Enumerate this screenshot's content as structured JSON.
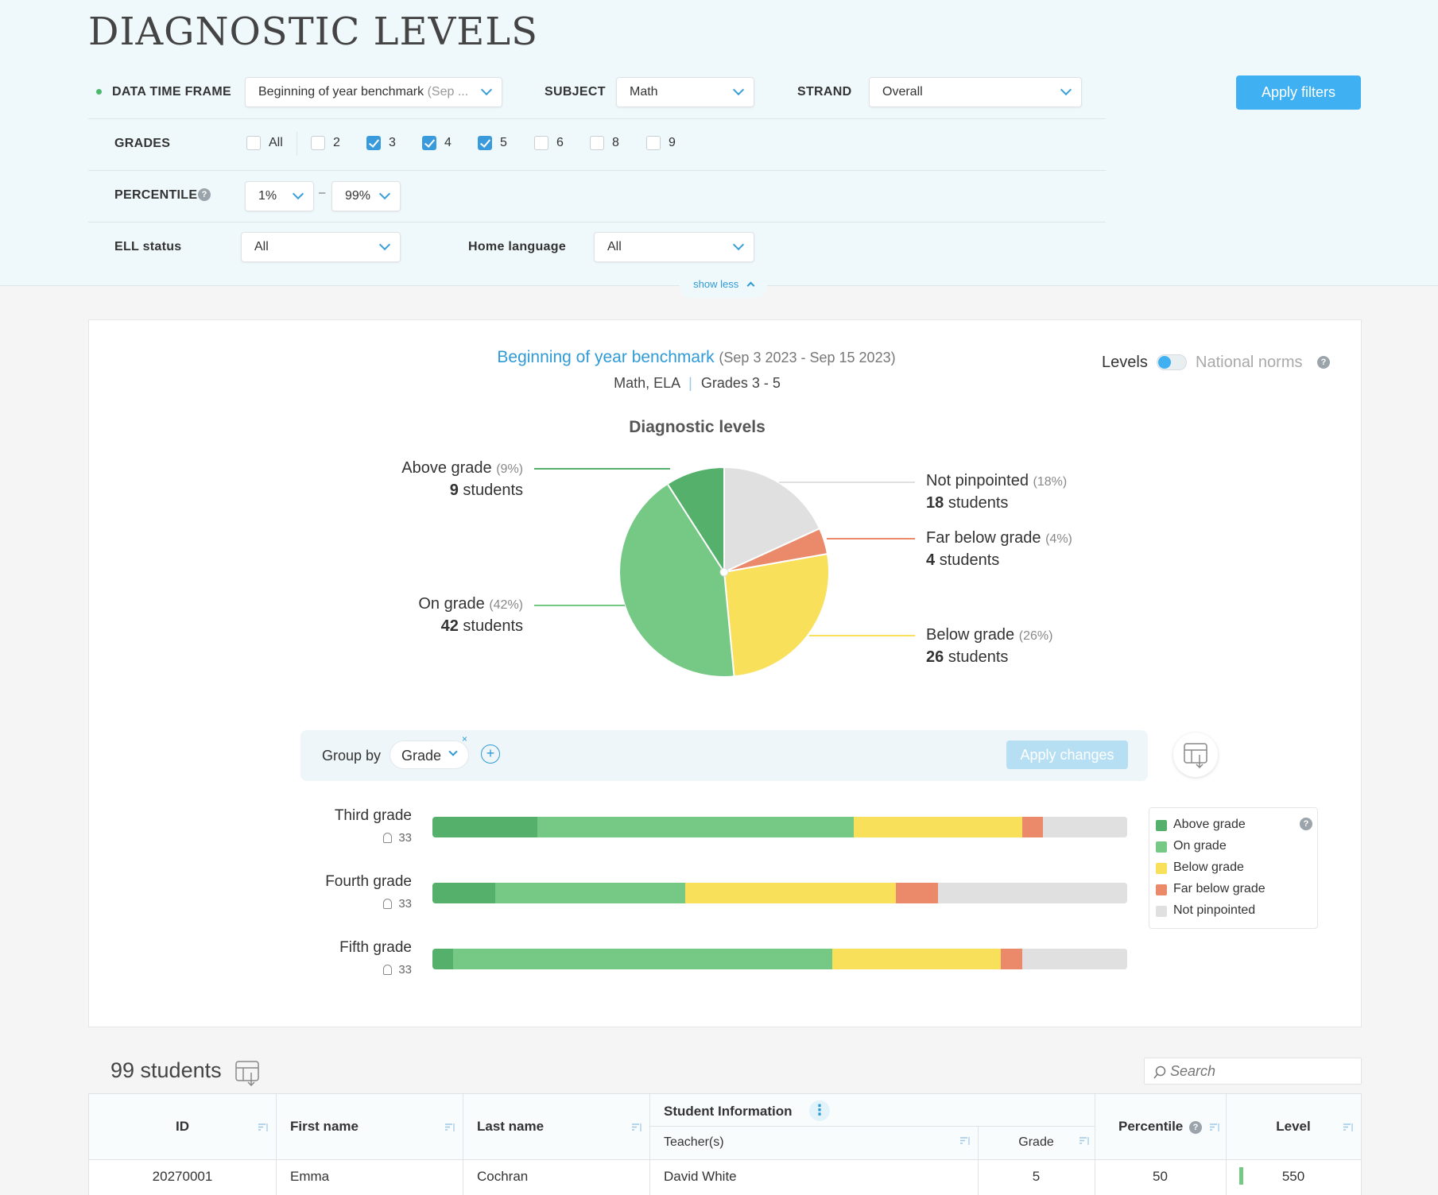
{
  "page": {
    "title": "DIAGNOSTIC LEVELS"
  },
  "filters": {
    "data_time_frame": {
      "label": "DATA TIME FRAME",
      "value": "Beginning of year benchmark",
      "value_muted": "(Sep ..."
    },
    "subject": {
      "label": "SUBJECT",
      "value": "Math"
    },
    "strand": {
      "label": "STRAND",
      "value": "Overall"
    },
    "apply_label": "Apply filters",
    "grades": {
      "label": "GRADES",
      "options": [
        {
          "label": "All",
          "checked": false
        },
        {
          "label": "2",
          "checked": false
        },
        {
          "label": "3",
          "checked": true
        },
        {
          "label": "4",
          "checked": true
        },
        {
          "label": "5",
          "checked": true
        },
        {
          "label": "6",
          "checked": false
        },
        {
          "label": "8",
          "checked": false
        },
        {
          "label": "9",
          "checked": false
        }
      ]
    },
    "percentile": {
      "label": "PERCENTILE",
      "min": "1%",
      "separator": "–",
      "max": "99%"
    },
    "ell_status": {
      "label": "ELL status",
      "value": "All"
    },
    "home_language": {
      "label": "Home language",
      "value": "All"
    },
    "show_less_label": "show less"
  },
  "chart_header": {
    "title": "Beginning of year benchmark",
    "date_range": "(Sep 3 2023 - Sep 15 2023)",
    "subjects": "Math, ELA",
    "separator": "|",
    "grades": "Grades 3 - 5",
    "toggle_left": "Levels",
    "toggle_right": "National norms"
  },
  "pie_labels": {
    "above": {
      "name": "Above grade",
      "pct": "(9%)",
      "count": "9",
      "unit": "students"
    },
    "on": {
      "name": "On grade",
      "pct": "(42%)",
      "count": "42",
      "unit": "students"
    },
    "not": {
      "name": "Not pinpointed",
      "pct": "(18%)",
      "count": "18",
      "unit": "students"
    },
    "far": {
      "name": "Far below grade",
      "pct": "(4%)",
      "count": "4",
      "unit": "students"
    },
    "below": {
      "name": "Below grade",
      "pct": "(26%)",
      "count": "26",
      "unit": "students"
    }
  },
  "group_by": {
    "label": "Group by",
    "value": "Grade",
    "apply_label": "Apply changes"
  },
  "legend": [
    "Above grade",
    "On grade",
    "Below grade",
    "Far below grade",
    "Not pinpointed"
  ],
  "colors": {
    "above": "#55b06b",
    "on": "#76c985",
    "below": "#f8e05a",
    "far": "#ea8a6a",
    "not": "#e0e0e0",
    "accent": "#3fb0f1"
  },
  "chart_data": [
    {
      "type": "pie",
      "title": "Diagnostic levels",
      "slices": [
        {
          "name": "Not pinpointed",
          "value": 18,
          "color": "#e0e0e0"
        },
        {
          "name": "Far below grade",
          "value": 4,
          "color": "#ea8a6a"
        },
        {
          "name": "Below grade",
          "value": 26,
          "color": "#f8e05a"
        },
        {
          "name": "On grade",
          "value": 42,
          "color": "#76c985"
        },
        {
          "name": "Above grade",
          "value": 9,
          "color": "#55b06b"
        }
      ]
    },
    {
      "type": "bar",
      "stacked": true,
      "orientation": "horizontal",
      "categories": [
        "Third grade",
        "Fourth grade",
        "Fifth grade"
      ],
      "counts": [
        "33",
        "33",
        "33"
      ],
      "series": [
        {
          "name": "Above grade",
          "values": [
            5,
            3,
            1
          ]
        },
        {
          "name": "On grade",
          "values": [
            15,
            9,
            18
          ]
        },
        {
          "name": "Below grade",
          "values": [
            8,
            10,
            8
          ]
        },
        {
          "name": "Far below grade",
          "values": [
            1,
            2,
            1
          ]
        },
        {
          "name": "Not pinpointed",
          "values": [
            4,
            9,
            5
          ]
        }
      ]
    }
  ],
  "table": {
    "count_label": "99 students",
    "search_placeholder": "Search",
    "headers": {
      "id": "ID",
      "first_name": "First name",
      "last_name": "Last name",
      "student_info": "Student Information",
      "teachers": "Teacher(s)",
      "grade": "Grade",
      "percentile": "Percentile",
      "level": "Level"
    },
    "rows": [
      {
        "id": "20270001",
        "first_name": "Emma",
        "last_name": "Cochran",
        "teacher": "David White",
        "grade": "5",
        "percentile": "50",
        "level": "550"
      }
    ]
  }
}
